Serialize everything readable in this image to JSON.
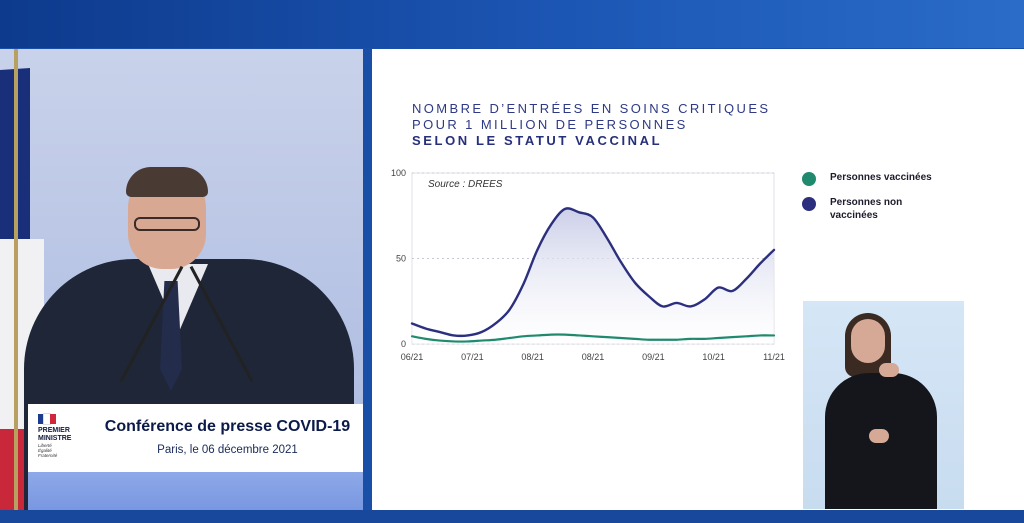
{
  "lectern": {
    "logo_line1": "PREMIER",
    "logo_line2": "MINISTRE",
    "logo_motto1": "Liberté",
    "logo_motto2": "Égalité",
    "logo_motto3": "Fraternité",
    "title": "Conférence de presse COVID-19",
    "subtitle": "Paris, le 06 décembre 2021"
  },
  "slide": {
    "title_line1": "NOMBRE D’ENTRÉES EN SOINS CRITIQUES",
    "title_line2": "POUR 1 MILLION DE PERSONNES",
    "title_line3": "SELON LE STATUT VACCINAL",
    "source": "Source : DREES"
  },
  "colors": {
    "unvaccinated": "#2b2f7e",
    "vaccinated": "#1f8a6e",
    "fill": "#c9cde7"
  },
  "chart_data": {
    "type": "line",
    "ylim": [
      0,
      100
    ],
    "y_ticks": [
      0,
      50,
      100
    ],
    "x_tick_labels": [
      "06/21",
      "07/21",
      "08/21",
      "08/21",
      "09/21",
      "10/21",
      "11/21"
    ],
    "x": [
      "06/21",
      "06/21",
      "07/21",
      "07/21",
      "07/21",
      "07/21",
      "08/21",
      "08/21",
      "08/21",
      "08/21",
      "08/21",
      "08/21",
      "08/21",
      "09/21",
      "09/21",
      "09/21",
      "09/21",
      "09/21",
      "09/21",
      "10/21",
      "10/21",
      "10/21",
      "10/21",
      "10/21",
      "10/21",
      "11/21",
      "11/21"
    ],
    "series": [
      {
        "name": "Personnes vaccinées",
        "color": "#1f8a6e",
        "values": [
          4.5,
          3,
          2,
          1.5,
          1.5,
          2,
          2.5,
          3.5,
          4.5,
          5,
          5.5,
          5.5,
          5,
          4.5,
          4,
          3.5,
          3,
          2.5,
          2.5,
          2.5,
          3,
          3,
          3.5,
          4,
          4.5,
          5,
          5
        ]
      },
      {
        "name": "Personnes non vaccinées",
        "color": "#2b2f7e",
        "values": [
          12,
          9,
          7,
          5,
          5,
          7,
          12,
          20,
          35,
          55,
          70,
          79,
          77,
          74,
          62,
          48,
          36,
          28,
          22,
          24,
          22,
          26,
          33,
          31,
          38,
          47,
          55
        ],
        "fill": true
      }
    ],
    "legend": [
      {
        "label": "Personnes vaccinées",
        "color": "#1f8a6e"
      },
      {
        "label": "Personnes non vaccinées",
        "color": "#2b2f7e"
      }
    ],
    "legend_position": "right",
    "grid": "horizontal dotted"
  }
}
